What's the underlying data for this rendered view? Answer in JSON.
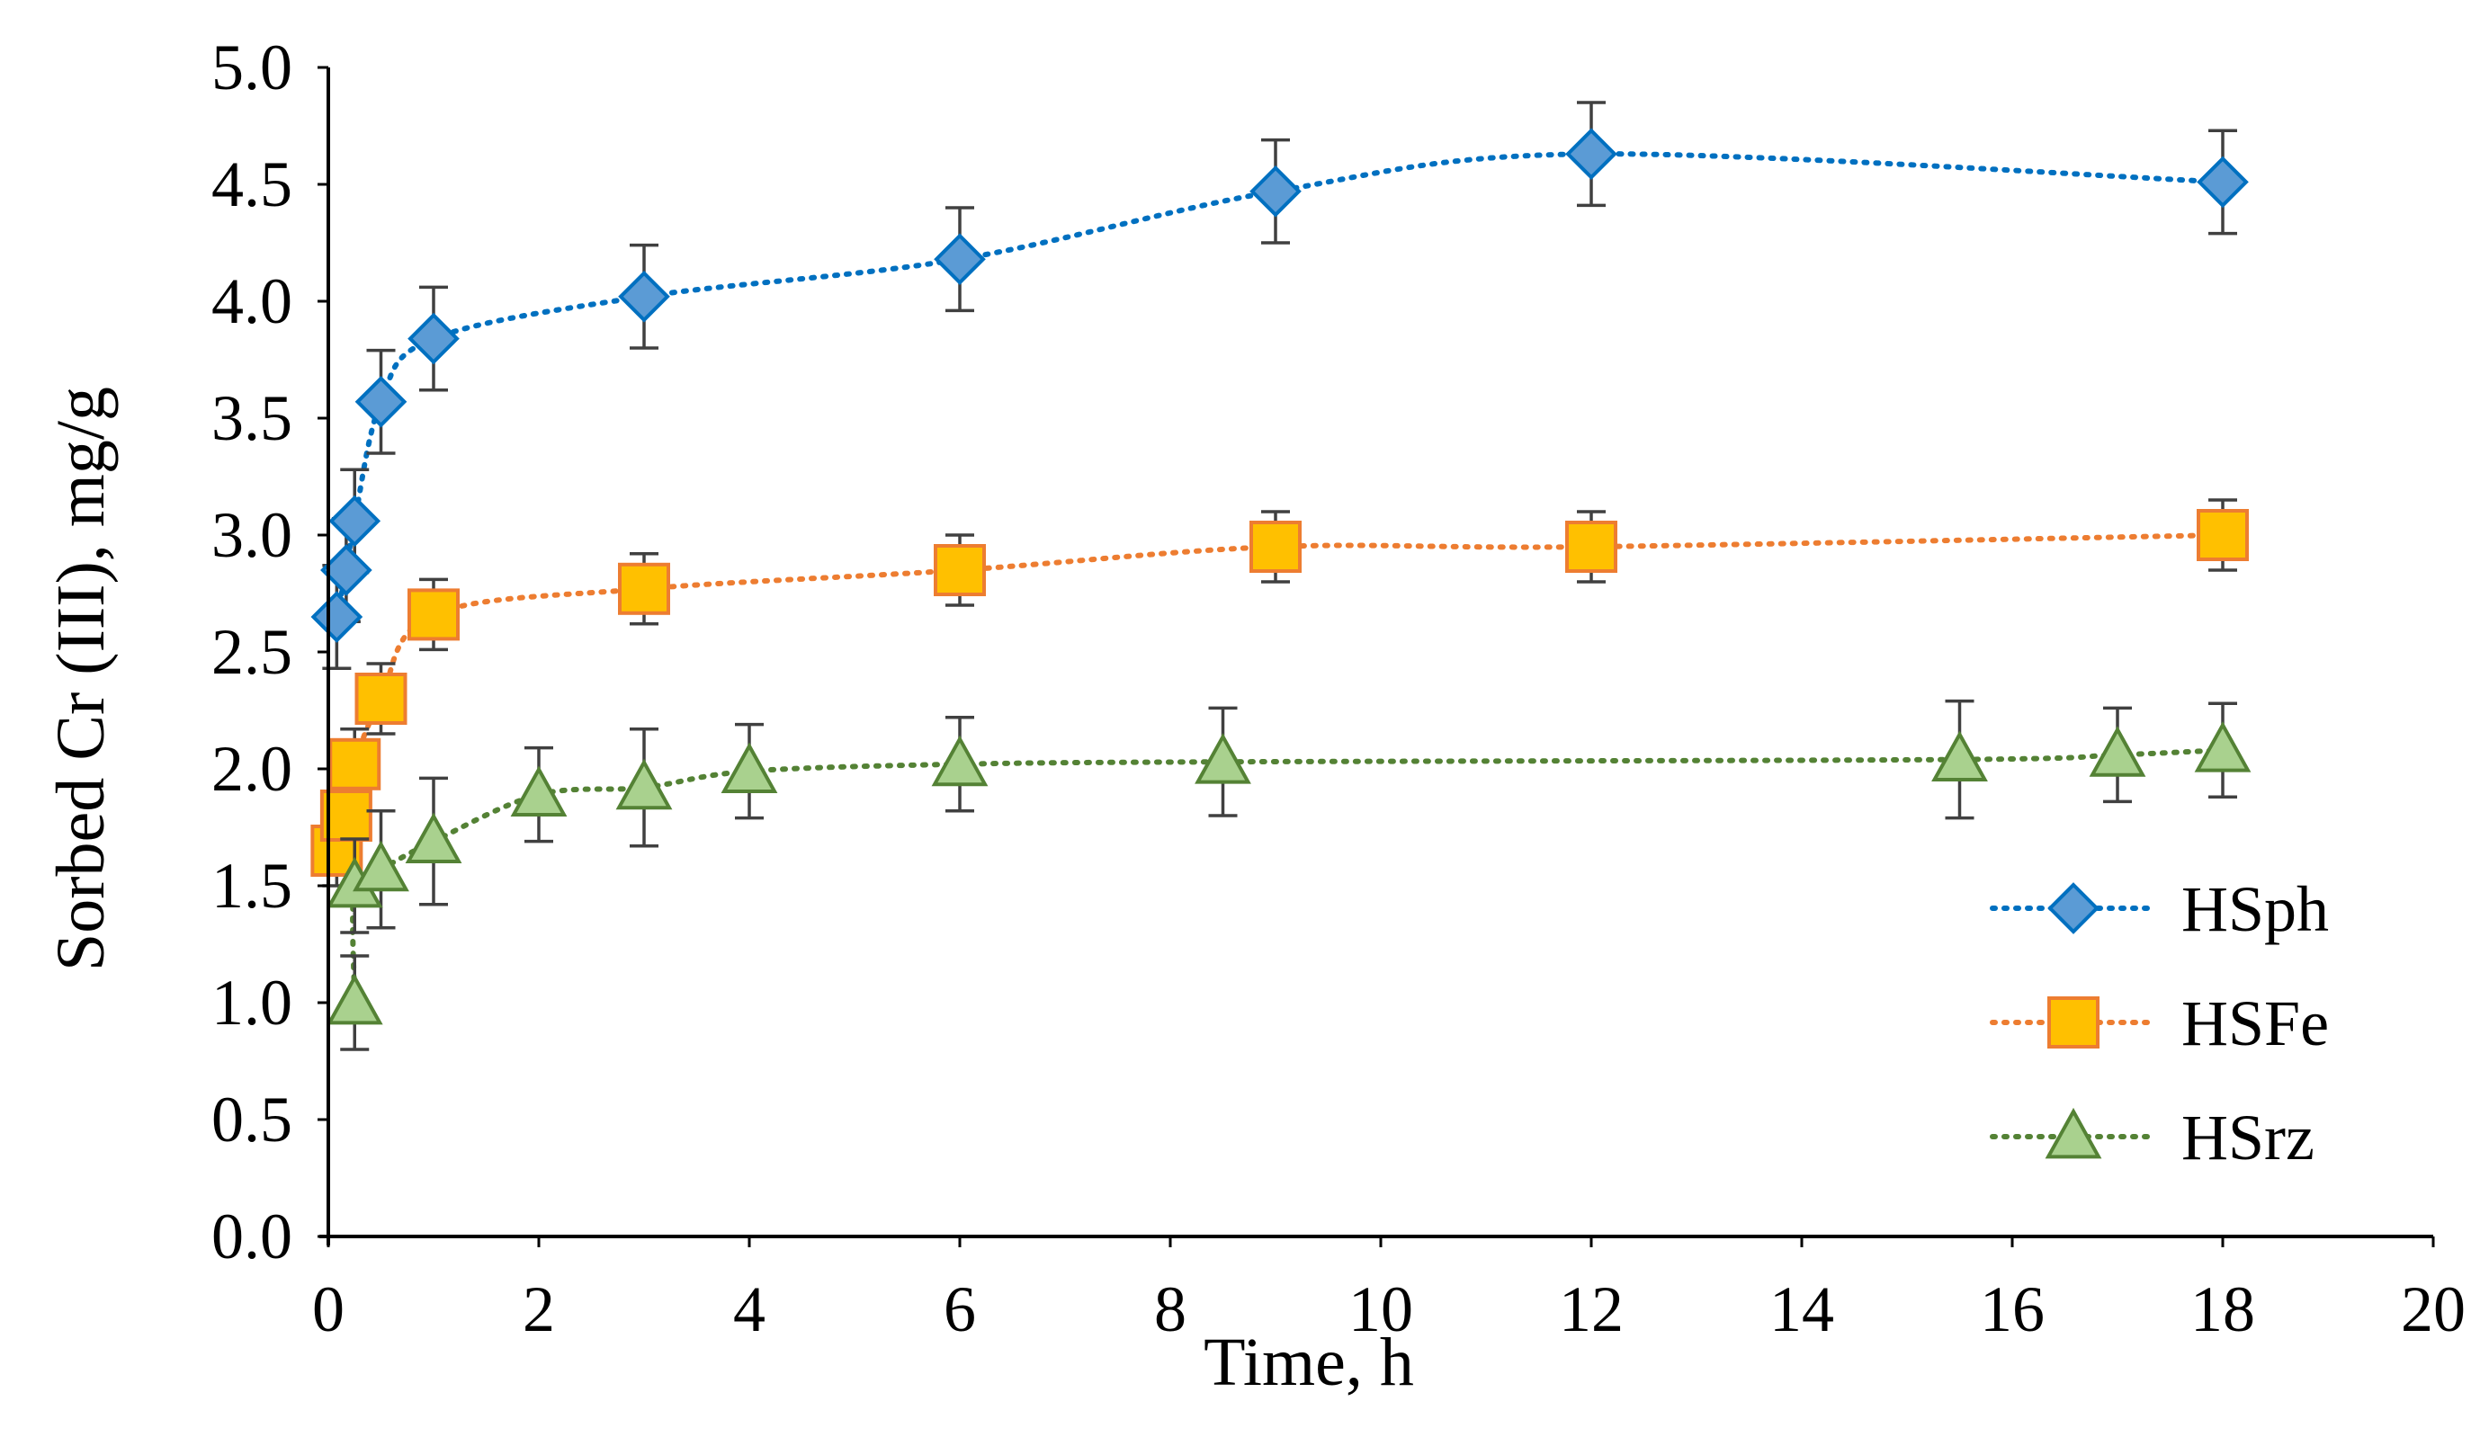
{
  "chart_data": {
    "type": "line",
    "title": "",
    "xlabel": "Time, h",
    "ylabel": "Sorbed Cr (III), mg/g",
    "xlim": [
      0,
      20
    ],
    "ylim": [
      0,
      5
    ],
    "xticks": [
      "0",
      "2",
      "4",
      "6",
      "8",
      "10",
      "12",
      "14",
      "16",
      "18",
      "20"
    ],
    "yticks": [
      "0.0",
      "0.5",
      "1.0",
      "1.5",
      "2.0",
      "2.5",
      "3.0",
      "3.5",
      "4.0",
      "4.5",
      "5.0"
    ],
    "grid": false,
    "legend_position": "right",
    "series": [
      {
        "name": "HSph",
        "marker": "diamond",
        "color": "#0070c0",
        "fill": "#5b9bd5",
        "x": [
          0.08,
          0.17,
          0.25,
          0.5,
          1,
          3,
          6,
          9,
          12,
          18
        ],
        "values": [
          2.65,
          2.85,
          3.06,
          3.57,
          3.84,
          4.02,
          4.18,
          4.47,
          4.63,
          4.51
        ],
        "errors": [
          0.22,
          0.22,
          0.22,
          0.22,
          0.22,
          0.22,
          0.22,
          0.22,
          0.22,
          0.22
        ]
      },
      {
        "name": "HSFe",
        "marker": "square",
        "color": "#ed7d31",
        "fill": "#ffc000",
        "x": [
          0.08,
          0.17,
          0.25,
          0.5,
          1,
          3,
          6,
          9,
          12,
          18
        ],
        "values": [
          1.65,
          1.8,
          2.02,
          2.3,
          2.66,
          2.77,
          2.85,
          2.95,
          2.95,
          3.0
        ],
        "errors": [
          0.15,
          0.15,
          0.15,
          0.15,
          0.15,
          0.15,
          0.15,
          0.15,
          0.15,
          0.15
        ]
      },
      {
        "name": "HSrz",
        "marker": "triangle",
        "color": "#548235",
        "fill": "#a9d18e",
        "x": [
          0.25,
          0.25,
          0.5,
          1,
          2,
          3,
          4,
          6,
          8.5,
          15.5,
          17,
          18
        ],
        "values": [
          1.0,
          1.5,
          1.57,
          1.69,
          1.89,
          1.92,
          1.99,
          2.02,
          2.03,
          2.04,
          2.06,
          2.08
        ],
        "errors": [
          0.2,
          0.2,
          0.25,
          0.27,
          0.2,
          0.25,
          0.2,
          0.2,
          0.23,
          0.25,
          0.2,
          0.2
        ]
      }
    ]
  }
}
